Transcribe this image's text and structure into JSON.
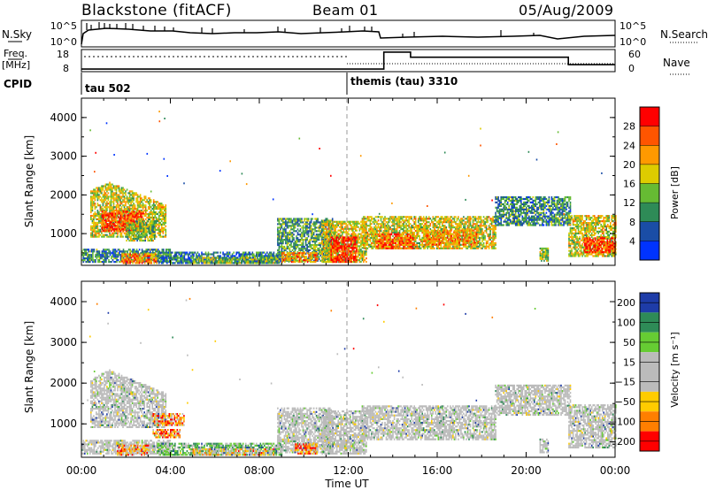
{
  "header": {
    "site": "Blackstone (fitACF)",
    "beam": "Beam 01",
    "date": "05/Aug/2009"
  },
  "summary": {
    "nsky_label": "N.Sky",
    "nsky_ticks": [
      "10^5",
      "10^0"
    ],
    "nsearch_label": "N.Search",
    "nsearch_ticks": [
      "10^5",
      "10^0"
    ],
    "freq_label_lines": [
      "Freq.",
      "[MHz]"
    ],
    "freq_ticks": [
      "18",
      "8"
    ],
    "nave_label": "Nave",
    "nave_ticks": [
      "60",
      "0"
    ],
    "cpid_label": "CPID",
    "cpid_modes": [
      {
        "label": "tau 502",
        "start_hour": 0
      },
      {
        "label": "themis (tau) 3310",
        "start_hour": 12
      }
    ],
    "nave_steps": [
      {
        "from": 0,
        "to": 13.6,
        "value": 5
      },
      {
        "from": 13.6,
        "to": 14.8,
        "value": 55
      },
      {
        "from": 14.8,
        "to": 21.9,
        "value": 40
      },
      {
        "from": 21.9,
        "to": 24,
        "value": 18
      }
    ]
  },
  "chart_data": [
    {
      "type": "heatmap",
      "name": "power",
      "ylabel": "Slant Range [km]",
      "yticks": [
        "1000",
        "2000",
        "3000",
        "4000"
      ],
      "ylim": [
        180,
        4500
      ],
      "xlim": [
        0,
        24
      ],
      "colorbar_label": "Power [dB]",
      "colorbar_ticks": [
        "4",
        "8",
        "12",
        "16",
        "20",
        "24",
        "28"
      ],
      "colorbar_range": [
        0,
        32
      ],
      "colors": [
        "#0033ff",
        "#1a4da6",
        "#2e8b57",
        "#66bb33",
        "#ddcc00",
        "#ff9900",
        "#ff5500",
        "#ff0000"
      ],
      "regions": [
        {
          "t0": 0.4,
          "t1": 3.8,
          "r0": 900,
          "r1": 2300,
          "level": 0.55,
          "taper": true
        },
        {
          "t0": 0.9,
          "t1": 2.8,
          "r0": 1050,
          "r1": 1550,
          "level": 0.85
        },
        {
          "t0": 2.0,
          "t1": 3.3,
          "r0": 800,
          "r1": 1300,
          "level": 0.45
        },
        {
          "t0": 0.0,
          "t1": 4.0,
          "r0": 250,
          "r1": 600,
          "level": 0.3
        },
        {
          "t0": 1.8,
          "t1": 3.4,
          "r0": 220,
          "r1": 450,
          "level": 0.75
        },
        {
          "t0": 3.4,
          "t1": 9.0,
          "r0": 220,
          "r1": 520,
          "level": 0.25
        },
        {
          "t0": 5.0,
          "t1": 8.8,
          "r0": 220,
          "r1": 380,
          "level": 0.45
        },
        {
          "t0": 8.8,
          "t1": 11.3,
          "r0": 280,
          "r1": 1400,
          "level": 0.35
        },
        {
          "t0": 9.0,
          "t1": 10.6,
          "r0": 250,
          "r1": 520,
          "level": 0.7
        },
        {
          "t0": 10.8,
          "t1": 12.8,
          "r0": 250,
          "r1": 1300,
          "level": 0.55
        },
        {
          "t0": 11.2,
          "t1": 12.4,
          "r0": 250,
          "r1": 900,
          "level": 0.92
        },
        {
          "t0": 12.6,
          "t1": 18.6,
          "r0": 600,
          "r1": 1450,
          "level": 0.55
        },
        {
          "t0": 13.2,
          "t1": 15.0,
          "r0": 600,
          "r1": 1000,
          "level": 0.8
        },
        {
          "t0": 15.4,
          "t1": 17.8,
          "r0": 700,
          "r1": 1100,
          "level": 0.7
        },
        {
          "t0": 18.6,
          "t1": 22.0,
          "r0": 1200,
          "r1": 1950,
          "level": 0.3
        },
        {
          "t0": 20.6,
          "t1": 21.0,
          "r0": 280,
          "r1": 600,
          "level": 0.5
        },
        {
          "t0": 21.9,
          "t1": 24.0,
          "r0": 400,
          "r1": 1450,
          "level": 0.55
        },
        {
          "t0": 22.6,
          "t1": 24.0,
          "r0": 500,
          "r1": 900,
          "level": 0.9
        }
      ]
    },
    {
      "type": "heatmap",
      "name": "velocity",
      "ylabel": "Slant Range [km]",
      "yticks": [
        "1000",
        "2000",
        "3000",
        "4000"
      ],
      "ylim": [
        180,
        4500
      ],
      "xlim": [
        0,
        24
      ],
      "xlabel": "Time UT",
      "xticks": [
        "00:00",
        "04:00",
        "08:00",
        "12:00",
        "16:00",
        "20:00",
        "00:00"
      ],
      "colorbar_label": "Velocity [m s⁻¹]",
      "colorbar_ticks": [
        "200",
        "100",
        "50",
        "15",
        "−15",
        "−50",
        "−100",
        "−200"
      ],
      "colors": [
        "#1e3ca8",
        "#2e8b57",
        "#66cc33",
        "#bbbbbb",
        "#bbbbbb",
        "#ffcc00",
        "#ff7f00",
        "#ff0000"
      ],
      "regions": [
        {
          "t0": 0.4,
          "t1": 3.8,
          "r0": 900,
          "r1": 2300,
          "level": 0.5,
          "taper": true
        },
        {
          "t0": 3.2,
          "t1": 4.6,
          "r0": 950,
          "r1": 1250,
          "level": 0.82
        },
        {
          "t0": 3.2,
          "t1": 4.4,
          "r0": 650,
          "r1": 850,
          "level": 0.82
        },
        {
          "t0": 0.0,
          "t1": 4.0,
          "r0": 250,
          "r1": 600,
          "level": 0.5
        },
        {
          "t0": 1.6,
          "t1": 3.0,
          "r0": 220,
          "r1": 450,
          "level": 0.8
        },
        {
          "t0": 3.4,
          "t1": 9.0,
          "r0": 220,
          "r1": 520,
          "level": 0.2
        },
        {
          "t0": 5.0,
          "t1": 8.6,
          "r0": 220,
          "r1": 380,
          "level": 0.7
        },
        {
          "t0": 8.8,
          "t1": 11.3,
          "r0": 280,
          "r1": 1400,
          "level": 0.5
        },
        {
          "t0": 9.6,
          "t1": 10.6,
          "r0": 250,
          "r1": 520,
          "level": 0.88
        },
        {
          "t0": 10.8,
          "t1": 12.8,
          "r0": 250,
          "r1": 1300,
          "level": 0.5
        },
        {
          "t0": 12.6,
          "t1": 18.6,
          "r0": 600,
          "r1": 1450,
          "level": 0.5
        },
        {
          "t0": 18.6,
          "t1": 22.0,
          "r0": 1200,
          "r1": 1950,
          "level": 0.5
        },
        {
          "t0": 20.6,
          "t1": 21.0,
          "r0": 280,
          "r1": 600,
          "level": 0.5
        },
        {
          "t0": 21.9,
          "t1": 24.0,
          "r0": 400,
          "r1": 1450,
          "level": 0.5
        }
      ]
    }
  ]
}
